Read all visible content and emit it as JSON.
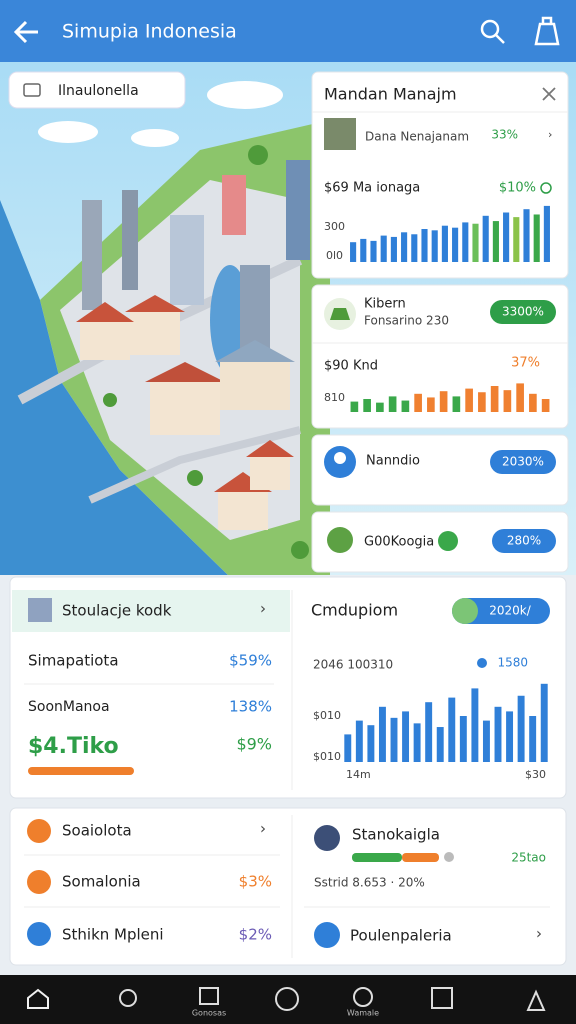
{
  "header": {
    "title": "Simupia Indonesia"
  },
  "map": {
    "label": "Ilnaulonella"
  },
  "side_panel": {
    "title": "Mandan Manajm",
    "item": {
      "name": "Dana Nenajanam",
      "value": "33%"
    },
    "chart1": {
      "title": "$69 Ma ionaga",
      "change": "$10%",
      "ytick_labels": [
        "300",
        "0l0"
      ],
      "ylim": [
        0,
        100
      ],
      "values": [
        30,
        35,
        32,
        40,
        38,
        45,
        42,
        50,
        48,
        55,
        52,
        60,
        58,
        70,
        62,
        75,
        68,
        80,
        72,
        85
      ],
      "colors": [
        "#2f7fd8",
        "#2f7fd8",
        "#2f7fd8",
        "#2f7fd8",
        "#2f7fd8",
        "#2f7fd8",
        "#2f7fd8",
        "#2f7fd8",
        "#2f7fd8",
        "#2f7fd8",
        "#2f7fd8",
        "#2f7fd8",
        "#6bbf59",
        "#2f7fd8",
        "#3aa84a",
        "#2f7fd8",
        "#8bc34a",
        "#2f7fd8",
        "#3aa84a",
        "#2f7fd8"
      ]
    },
    "card1": {
      "name": "Kibern",
      "subtitle": "Fonsarino 230",
      "badge": "3300%"
    },
    "chart2": {
      "title": "$90 Knd",
      "change": "37%",
      "ytick_label": "810",
      "ylim": [
        0,
        100
      ],
      "values": [
        20,
        25,
        18,
        30,
        22,
        35,
        28,
        40,
        30,
        45,
        38,
        50,
        42,
        55,
        35,
        25
      ],
      "colors": [
        "#3aa84a",
        "#3aa84a",
        "#3aa84a",
        "#3aa84a",
        "#3aa84a",
        "#f08030",
        "#f08030",
        "#f08030",
        "#3aa84a",
        "#f08030",
        "#f08030",
        "#f08030",
        "#f08030",
        "#f08030",
        "#f08030",
        "#f08030"
      ]
    },
    "card2": {
      "name": "Nanndio",
      "badge": "2030%"
    },
    "card3": {
      "name": "G00Koogia",
      "badge": "280%"
    }
  },
  "stats": {
    "header": "Stoulacje kodk",
    "rows": [
      {
        "name": "Simapatiota",
        "value": "$59%"
      },
      {
        "name": "SoonManoa",
        "value": "138%"
      }
    ],
    "big_value": "$4.Tiko",
    "big_change": "$9%"
  },
  "chart3": {
    "title": "Cmdupiom",
    "toggle": "2020k/",
    "subtitle": "2046 100310",
    "change": "1580",
    "ytick_labels": [
      "$010",
      "$010"
    ],
    "xtick_labels": [
      "14m",
      "$30"
    ],
    "ylim": [
      0,
      100
    ],
    "color": "#2f7fd8",
    "values": [
      30,
      45,
      40,
      60,
      48,
      55,
      42,
      65,
      38,
      70,
      50,
      80,
      45,
      60,
      55,
      72,
      50,
      85
    ]
  },
  "list_left": [
    {
      "name": "Soaiolota"
    },
    {
      "name": "Somalonia",
      "value": "$3%"
    },
    {
      "name": "Sthikn Mpleni",
      "value": "$2%"
    }
  ],
  "list_right": {
    "name": "Stanokaigla",
    "value": "25tao",
    "detail": "Sstrid 8.653 · 20%",
    "footer": "Poulenpaleria"
  },
  "nav": {
    "labels": [
      "Gonosas",
      "Wamale"
    ]
  }
}
